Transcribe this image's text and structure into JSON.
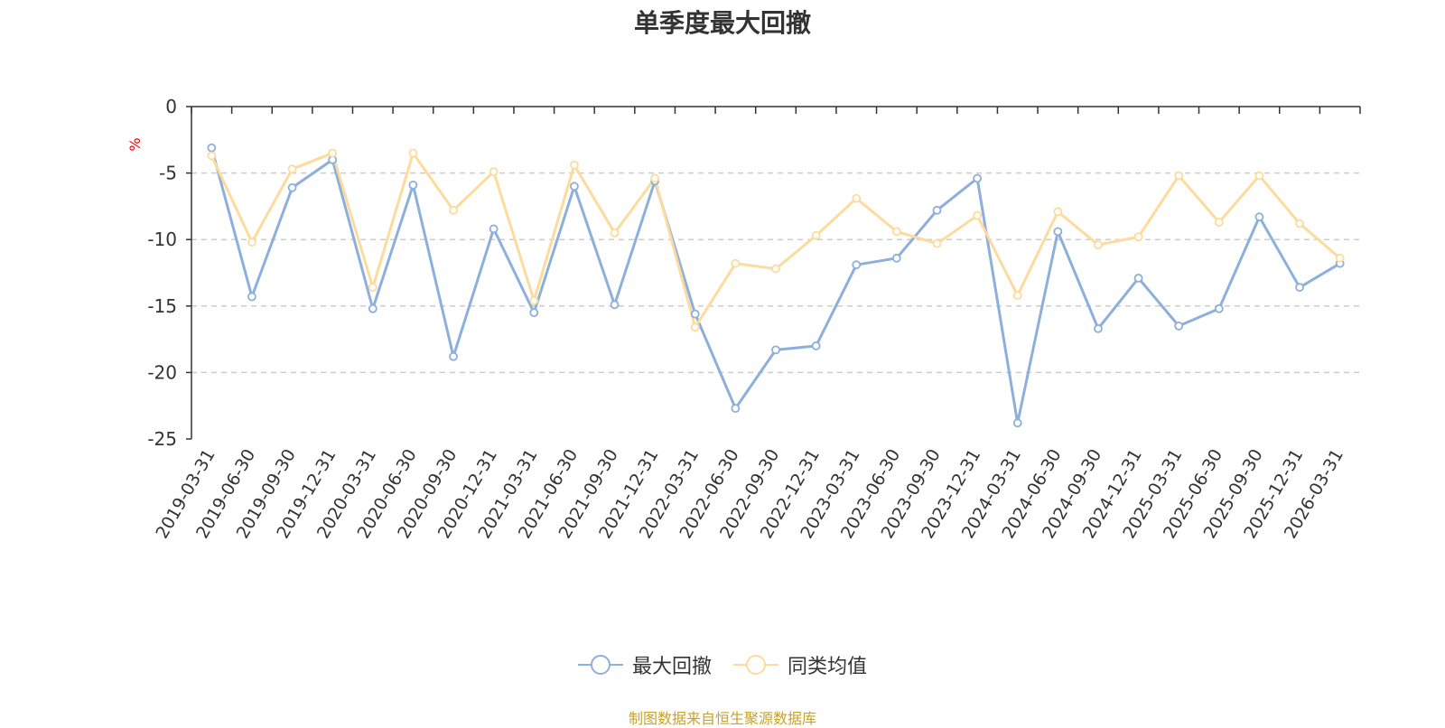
{
  "chart_data": {
    "type": "line",
    "title": "单季度最大回撤",
    "ylabel": "%",
    "ylim": [
      -25,
      0
    ],
    "yticks": [
      0,
      -5,
      -10,
      -15,
      -20,
      -25
    ],
    "grid": true,
    "legend_position": "bottom-center",
    "x": [
      "2019-03-31",
      "2019-06-30",
      "2019-09-30",
      "2019-12-31",
      "2020-03-31",
      "2020-06-30",
      "2020-09-30",
      "2020-12-31",
      "2021-03-31",
      "2021-06-30",
      "2021-09-30",
      "2021-12-31",
      "2022-03-31",
      "2022-06-30",
      "2022-09-30",
      "2022-12-31",
      "2023-03-31",
      "2023-06-30",
      "2023-09-30",
      "2023-12-31",
      "2024-03-31",
      "2024-06-30",
      "2024-09-30",
      "2024-12-31",
      "2025-03-31",
      "2025-06-30",
      "2025-09-30",
      "2025-12-31",
      "2026-03-31"
    ],
    "series": [
      {
        "name": "最大回撤",
        "color": "#8dafdb",
        "values": [
          -3.1,
          -14.3,
          -6.1,
          -4.0,
          -15.2,
          -5.9,
          -18.8,
          -9.2,
          -15.5,
          -6.0,
          -14.9,
          -5.6,
          -15.6,
          -22.7,
          -18.3,
          -18.0,
          -11.9,
          -11.4,
          -7.8,
          -5.4,
          -23.8,
          -9.4,
          -16.7,
          -12.9,
          -16.5,
          -15.2,
          -8.3,
          -13.6,
          -11.8
        ]
      },
      {
        "name": "同类均值",
        "color": "#fddb9c",
        "values": [
          -3.7,
          -10.2,
          -4.7,
          -3.5,
          -13.6,
          -3.5,
          -7.8,
          -4.9,
          -14.6,
          -4.4,
          -9.5,
          -5.4,
          -16.6,
          -11.8,
          -12.2,
          -9.7,
          -6.9,
          -9.4,
          -10.3,
          -8.2,
          -14.2,
          -7.9,
          -10.4,
          -9.8,
          -5.2,
          -8.7,
          -5.2,
          -8.8,
          -11.4
        ]
      }
    ]
  },
  "footer": {
    "source": "制图数据来自恒生聚源数据库"
  }
}
